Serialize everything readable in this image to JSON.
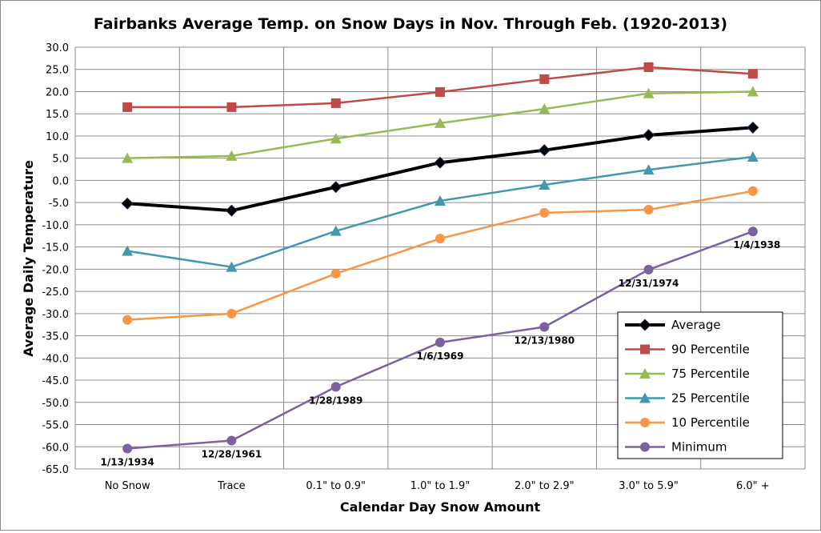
{
  "chart_data": {
    "type": "line",
    "title": "Fairbanks Average Temp. on Snow Days in Nov. Through Feb. (1920-2013)",
    "xlabel": "Calendar  Day Snow Amount",
    "ylabel": "Average Daily Temperature",
    "ylim": [
      -65,
      30
    ],
    "ytick_step": 5,
    "grid": true,
    "legend": "bottom-right",
    "categories": [
      "No Snow",
      "Trace",
      "0.1\" to 0.9\"",
      "1.0\" to 1.9\"",
      "2.0\" to 2.9\"",
      "3.0\" to 5.9\"",
      "6.0\" +"
    ],
    "series": [
      {
        "name": "Average",
        "color": "#000000",
        "marker": "diamond",
        "values": [
          -5.2,
          -6.8,
          -1.5,
          4.0,
          6.8,
          10.2,
          11.9
        ]
      },
      {
        "name": "90 Percentile",
        "color": "#be4b48",
        "marker": "square",
        "values": [
          16.5,
          16.5,
          17.4,
          19.9,
          22.8,
          25.5,
          24.0
        ]
      },
      {
        "name": "75 Percentile",
        "color": "#98b954",
        "marker": "triangle",
        "values": [
          5.0,
          5.5,
          9.4,
          12.9,
          16.1,
          19.6,
          20.0
        ]
      },
      {
        "name": "25 Percentile",
        "color": "#4198af",
        "marker": "triangle",
        "values": [
          -15.9,
          -19.5,
          -11.4,
          -4.6,
          -1.0,
          2.4,
          5.3
        ]
      },
      {
        "name": "10 Percentile",
        "color": "#f79646",
        "marker": "circle",
        "values": [
          -31.4,
          -30.0,
          -21.0,
          -13.1,
          -7.3,
          -6.6,
          -2.4
        ]
      },
      {
        "name": "Minimum",
        "color": "#7d60a0",
        "marker": "circle",
        "values": [
          -60.4,
          -58.6,
          -46.5,
          -36.5,
          -33.0,
          -20.1,
          -11.5
        ],
        "data_labels": [
          "1/13/1934",
          "12/28/1961",
          "1/28/1989",
          "1/6/1969",
          "12/13/1980",
          "12/31/1974",
          "1/4/1938"
        ]
      }
    ]
  }
}
